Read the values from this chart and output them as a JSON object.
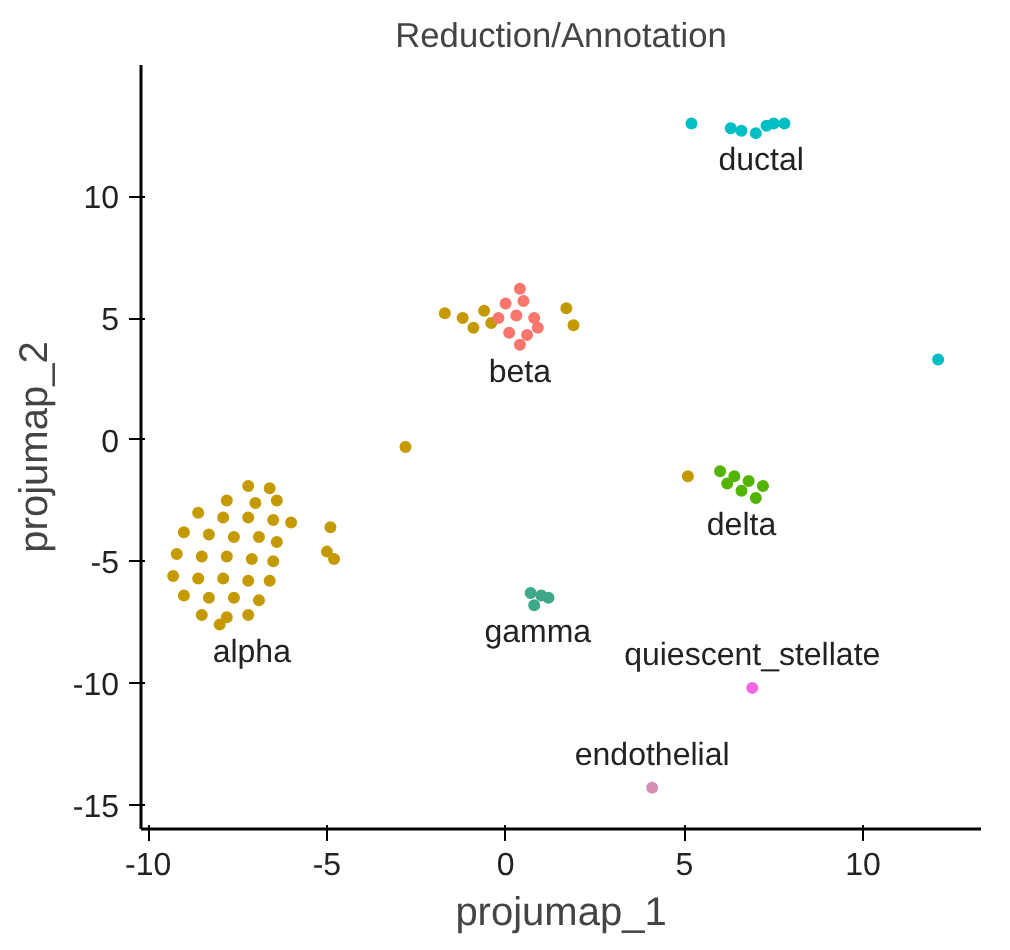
{
  "chart_data": {
    "type": "scatter",
    "title": "Reduction/Annotation",
    "xlabel": "projumap_1",
    "ylabel": "projumap_2",
    "xlim": [
      -10.2,
      13.3
    ],
    "ylim": [
      -16,
      15.4
    ],
    "xticks": [
      -10,
      -5,
      0,
      5,
      10
    ],
    "yticks": [
      -15,
      -10,
      -5,
      0,
      5,
      10
    ],
    "grid": false,
    "marker": "circle",
    "series": [
      {
        "name": "alpha",
        "color": "#c49a00",
        "x": [
          -7.2,
          -6.6,
          -7.8,
          -7.0,
          -6.4,
          -8.6,
          -7.9,
          -7.2,
          -6.5,
          -9.0,
          -8.3,
          -7.6,
          -6.9,
          -6.4,
          -9.2,
          -8.5,
          -7.8,
          -7.1,
          -6.5,
          -9.3,
          -8.6,
          -7.9,
          -7.2,
          -6.6,
          -9.0,
          -8.3,
          -7.6,
          -6.9,
          -8.5,
          -7.8,
          -7.2,
          -8.0,
          -6.0,
          -4.9,
          -5.0,
          -4.8,
          -2.8,
          -1.7,
          -1.2,
          -0.6,
          -0.9,
          -0.4,
          1.7,
          1.9,
          5.1
        ],
        "values": [
          -1.9,
          -2.0,
          -2.5,
          -2.6,
          -2.5,
          -3.0,
          -3.2,
          -3.2,
          -3.3,
          -3.8,
          -3.9,
          -4.0,
          -4.0,
          -4.2,
          -4.7,
          -4.8,
          -4.8,
          -4.9,
          -5.0,
          -5.6,
          -5.7,
          -5.7,
          -5.8,
          -5.8,
          -6.4,
          -6.5,
          -6.5,
          -6.6,
          -7.2,
          -7.3,
          -7.2,
          -7.6,
          -3.4,
          -3.6,
          -4.6,
          -4.9,
          -0.3,
          5.2,
          5.0,
          5.3,
          4.6,
          4.8,
          5.4,
          4.7,
          -1.5
        ]
      },
      {
        "name": "beta",
        "color": "#f8766d",
        "x": [
          0.0,
          0.5,
          -0.2,
          0.3,
          0.8,
          0.1,
          0.6,
          0.4,
          0.9,
          0.4
        ],
        "values": [
          5.6,
          5.7,
          5.0,
          5.1,
          5.0,
          4.4,
          4.3,
          3.9,
          4.6,
          6.2
        ]
      },
      {
        "name": "ductal",
        "color": "#00bfc4",
        "x": [
          5.2,
          6.3,
          6.6,
          7.0,
          7.3,
          7.5,
          7.8,
          12.1
        ],
        "values": [
          13.0,
          12.8,
          12.7,
          12.6,
          12.9,
          13.0,
          13.0,
          3.3
        ]
      },
      {
        "name": "delta",
        "color": "#53b400",
        "x": [
          6.0,
          6.4,
          6.8,
          7.2,
          6.6,
          7.0,
          6.2
        ],
        "values": [
          -1.3,
          -1.5,
          -1.7,
          -1.9,
          -2.1,
          -2.4,
          -1.8
        ]
      },
      {
        "name": "gamma",
        "color": "#3fa88a",
        "x": [
          0.7,
          1.0,
          0.8,
          1.2
        ],
        "values": [
          -6.3,
          -6.4,
          -6.8,
          -6.5
        ]
      },
      {
        "name": "quiescent_stellate",
        "color": "#f564e3",
        "x": [
          6.9
        ],
        "values": [
          -10.2
        ]
      },
      {
        "name": "endothelial",
        "color": "#d58fb4",
        "x": [
          4.1
        ],
        "values": [
          -14.3
        ]
      }
    ]
  }
}
